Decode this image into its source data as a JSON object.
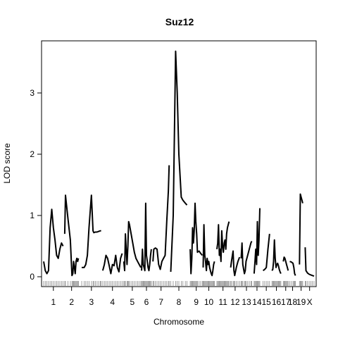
{
  "chart_data": {
    "type": "line",
    "title": "Suz12",
    "xlabel": "Chromosome",
    "ylabel": "LOD score",
    "ylim": [
      -0.1,
      3.9
    ],
    "yticks": [
      0,
      1,
      2,
      3
    ],
    "line_color": "#000000",
    "chromosomes": [
      {
        "label": "1",
        "start": 0,
        "end": 24,
        "x": [
          0,
          2,
          4,
          6,
          8,
          10,
          12,
          14,
          16,
          18,
          20,
          22,
          24
        ],
        "lod": [
          0.25,
          0.1,
          0.05,
          0.1,
          0.8,
          1.1,
          0.8,
          0.6,
          0.35,
          0.3,
          0.45,
          0.55,
          0.5
        ]
      },
      {
        "label": "2",
        "start": 26,
        "end": 43,
        "x": [
          26,
          27,
          30,
          33,
          35,
          36,
          37,
          38,
          39,
          40,
          41,
          42,
          43
        ],
        "lod": [
          0.7,
          1.33,
          0.95,
          0.6,
          0.02,
          0.05,
          0.25,
          0.15,
          0.05,
          0.25,
          0.3,
          0.25,
          0.3
        ]
      },
      {
        "label": "3",
        "start": 47,
        "end": 71,
        "x": [
          47,
          50,
          52,
          54,
          56,
          59,
          61,
          62,
          64,
          66,
          68,
          70,
          71
        ],
        "lod": [
          0.15,
          0.15,
          0.2,
          0.35,
          0.8,
          1.33,
          0.75,
          0.72,
          0.73,
          0.73,
          0.74,
          0.75,
          0.75
        ]
      },
      {
        "label": "4",
        "start": 73,
        "end": 97,
        "x": [
          73,
          75,
          77,
          79,
          81,
          83,
          85,
          87,
          89,
          91,
          93,
          95,
          97
        ],
        "lod": [
          0.1,
          0.2,
          0.35,
          0.3,
          0.18,
          0.05,
          0.2,
          0.18,
          0.35,
          0.15,
          0.08,
          0.3,
          0.38
        ]
      },
      {
        "label": "5",
        "start": 99,
        "end": 120,
        "x": [
          99,
          100,
          101,
          103,
          104,
          105,
          106,
          108,
          110,
          112,
          114,
          116,
          118,
          120
        ],
        "lod": [
          0.25,
          0.1,
          0.7,
          0.2,
          0.5,
          0.9,
          0.85,
          0.7,
          0.55,
          0.4,
          0.3,
          0.25,
          0.2,
          0.15
        ]
      },
      {
        "label": "6",
        "start": 121,
        "end": 133,
        "x": [
          121,
          122,
          123,
          124,
          125,
          126,
          127,
          128,
          129,
          130,
          131,
          132,
          133
        ],
        "lod": [
          0.1,
          0.45,
          0.2,
          0.15,
          0.1,
          1.2,
          0.35,
          0.25,
          0.15,
          0.1,
          0.2,
          0.35,
          0.45
        ]
      },
      {
        "label": "7",
        "start": 135,
        "end": 155,
        "x": [
          135,
          136,
          138,
          140,
          142,
          144,
          146,
          148,
          150,
          152,
          154,
          155
        ],
        "lod": [
          0.25,
          0.45,
          0.47,
          0.45,
          0.2,
          0.12,
          0.25,
          0.3,
          0.35,
          0.9,
          1.4,
          1.82
        ]
      },
      {
        "label": "8",
        "start": 157,
        "end": 177,
        "x": [
          157,
          160,
          163,
          165,
          167,
          170,
          172,
          175,
          177
        ],
        "lod": [
          0.08,
          1.0,
          3.68,
          3.0,
          2.0,
          1.3,
          1.25,
          1.2,
          1.17
        ]
      },
      {
        "label": "9",
        "start": 181,
        "end": 196,
        "x": [
          181,
          182,
          183,
          184,
          185,
          186,
          187,
          188,
          189,
          190,
          192,
          194,
          196
        ],
        "lod": [
          0.45,
          0.05,
          0.3,
          0.8,
          0.55,
          0.75,
          1.2,
          0.9,
          0.7,
          0.4,
          0.42,
          0.38,
          0.35
        ]
      },
      {
        "label": "10",
        "start": 197,
        "end": 211,
        "x": [
          197,
          198,
          199,
          200,
          201,
          202,
          203,
          204,
          205,
          206,
          207,
          208,
          209,
          210,
          211
        ],
        "lod": [
          0.15,
          0.85,
          0.35,
          0.25,
          0.1,
          0.3,
          0.2,
          0.25,
          0.15,
          0.1,
          0.05,
          0.02,
          0.1,
          0.2,
          0.25
        ]
      },
      {
        "label": "11",
        "start": 214,
        "end": 229,
        "x": [
          214,
          215,
          216,
          217,
          218,
          219,
          220,
          221,
          222,
          223,
          224,
          225,
          226,
          227,
          228,
          229
        ],
        "lod": [
          0.45,
          0.55,
          0.85,
          0.35,
          0.45,
          0.25,
          0.75,
          0.5,
          0.4,
          0.55,
          0.6,
          0.45,
          0.7,
          0.8,
          0.85,
          0.9
        ]
      },
      {
        "label": "12",
        "start": 231,
        "end": 242,
        "x": [
          231,
          232,
          234,
          235,
          236,
          238,
          240,
          242
        ],
        "lod": [
          0.15,
          0.25,
          0.42,
          0.1,
          0.02,
          0.15,
          0.25,
          0.32
        ]
      },
      {
        "label": "13",
        "start": 244,
        "end": 257,
        "x": [
          244,
          245,
          246,
          248,
          249,
          250,
          252,
          254,
          256,
          257
        ],
        "lod": [
          0.3,
          0.55,
          0.2,
          0.05,
          0.1,
          0.25,
          0.35,
          0.45,
          0.55,
          0.58
        ]
      },
      {
        "label": "14",
        "start": 260,
        "end": 267,
        "x": [
          260,
          261,
          262,
          263,
          264,
          265,
          266,
          267
        ],
        "lod": [
          0.05,
          0.25,
          0.45,
          0.2,
          0.9,
          0.35,
          0.6,
          1.12
        ]
      },
      {
        "label": "15",
        "start": 271,
        "end": 279,
        "x": [
          271,
          273,
          275,
          277,
          279
        ],
        "lod": [
          0.1,
          0.12,
          0.15,
          0.45,
          0.7
        ]
      },
      {
        "label": "16",
        "start": 282,
        "end": 293,
        "x": [
          282,
          283,
          284,
          285,
          286,
          287,
          288,
          289,
          290,
          291,
          292,
          293
        ],
        "lod": [
          0.1,
          0.12,
          0.25,
          0.6,
          0.3,
          0.15,
          0.2,
          0.22,
          0.18,
          0.12,
          0.08,
          0.05
        ]
      },
      {
        "label": "17",
        "start": 296,
        "end": 302,
        "x": [
          296,
          297,
          298,
          299,
          300,
          301,
          302
        ],
        "lod": [
          0.25,
          0.32,
          0.3,
          0.25,
          0.2,
          0.15,
          0.1
        ]
      },
      {
        "label": "18",
        "start": 304,
        "end": 311,
        "x": [
          304,
          306,
          308,
          309,
          310,
          311
        ],
        "lod": [
          0.25,
          0.24,
          0.22,
          0.15,
          0.05,
          0.02
        ]
      },
      {
        "label": "19",
        "start": 316,
        "end": 320,
        "x": [
          316,
          317,
          318,
          319,
          320
        ],
        "lod": [
          0.2,
          1.35,
          1.3,
          1.25,
          1.2
        ]
      },
      {
        "label": "X",
        "start": 323,
        "end": 334,
        "x": [
          323,
          324,
          326,
          328,
          330,
          332,
          334
        ],
        "lod": [
          0.48,
          0.1,
          0.06,
          0.04,
          0.03,
          0.02,
          0.01
        ]
      }
    ]
  }
}
